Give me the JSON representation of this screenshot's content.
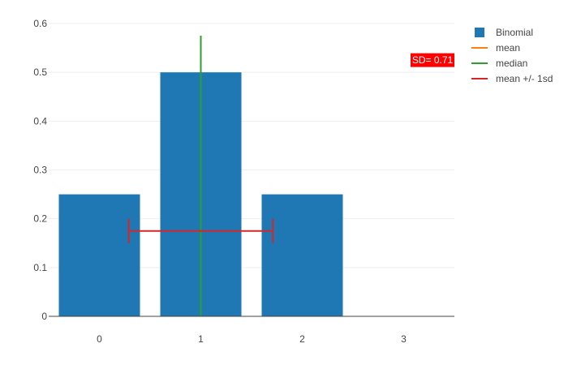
{
  "chart_data": {
    "type": "bar",
    "title": "",
    "xlabel": "",
    "ylabel": "",
    "categories": [
      "0",
      "1",
      "2",
      "3"
    ],
    "x": [
      0,
      1,
      2,
      3
    ],
    "series": [
      {
        "name": "Binomial",
        "values": [
          0.25,
          0.5,
          0.25,
          0
        ],
        "color": "#1f77b4"
      }
    ],
    "xlim": [
      -0.5,
      3.5
    ],
    "ylim": [
      0,
      0.6
    ],
    "yticks": [
      0,
      0.1,
      0.2,
      0.3,
      0.4,
      0.5,
      0.6
    ],
    "ytick_labels": [
      "0",
      "0.1",
      "0.2",
      "0.3",
      "0.4",
      "0.5",
      "0.6"
    ],
    "grid": true,
    "legend_position": "top-right",
    "lines": [
      {
        "name": "mean",
        "color": "#ff7f0e",
        "x": [
          1,
          1
        ],
        "y": [
          0,
          0.575
        ]
      },
      {
        "name": "median",
        "color": "#2ca02c",
        "x": [
          1,
          1
        ],
        "y": [
          0,
          0.575
        ]
      },
      {
        "name": "mean +/- 1sd",
        "color": "#d62728",
        "x": [
          0.29,
          1.71
        ],
        "y": [
          0.175,
          0.175
        ],
        "cap_half_height": 0.025
      }
    ],
    "annotation": {
      "text": "SD= 0.71",
      "background": "#ff0000",
      "color": "#ffffff",
      "x": 3.5,
      "y": 0.525
    }
  }
}
